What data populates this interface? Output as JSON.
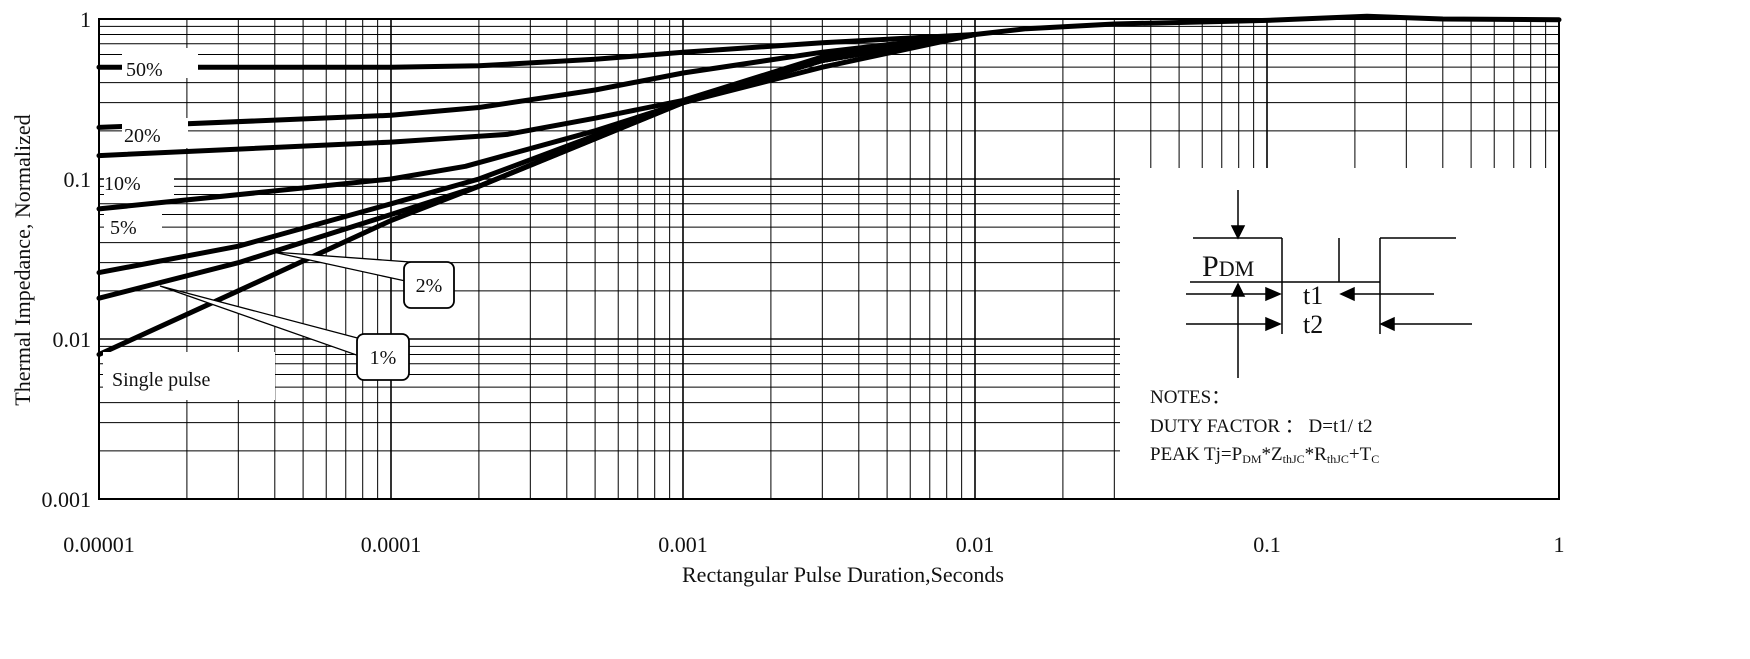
{
  "chart_data": {
    "type": "line",
    "xlabel": "Rectangular Pulse Duration,Seconds",
    "ylabel": "Thermal Impedance, Normalized",
    "x_scale": "log",
    "y_scale": "log",
    "xlim": [
      1e-05,
      1
    ],
    "ylim": [
      0.001,
      1
    ],
    "x_ticks": [
      "0.00001",
      "0.0001",
      "0.001",
      "0.01",
      "0.1",
      "1"
    ],
    "y_ticks": [
      "1",
      "0.1",
      "0.01",
      "0.001"
    ],
    "grid": true,
    "series": [
      {
        "name": "50%",
        "x": [
          1e-05,
          0.0001,
          0.0002,
          0.0005,
          0.001,
          0.003,
          0.01
        ],
        "y": [
          0.5,
          0.5,
          0.51,
          0.56,
          0.62,
          0.71,
          0.8
        ]
      },
      {
        "name": "20%",
        "x": [
          1e-05,
          0.0001,
          0.0002,
          0.0005,
          0.001,
          0.003,
          0.01
        ],
        "y": [
          0.21,
          0.25,
          0.28,
          0.36,
          0.46,
          0.62,
          0.8
        ]
      },
      {
        "name": "10%",
        "x": [
          1e-05,
          0.0001,
          0.00025,
          0.0005,
          0.001,
          0.003,
          0.01
        ],
        "y": [
          0.14,
          0.17,
          0.19,
          0.24,
          0.31,
          0.58,
          0.8
        ]
      },
      {
        "name": "5%",
        "x": [
          1e-05,
          0.0001,
          0.00018,
          0.0005,
          0.001,
          0.003,
          0.01
        ],
        "y": [
          0.065,
          0.1,
          0.12,
          0.2,
          0.3,
          0.55,
          0.8
        ]
      },
      {
        "name": "2%",
        "x": [
          1e-05,
          3e-05,
          0.0001,
          0.0002,
          0.001,
          0.003,
          0.01
        ],
        "y": [
          0.026,
          0.038,
          0.07,
          0.1,
          0.3,
          0.55,
          0.8
        ]
      },
      {
        "name": "1%",
        "x": [
          1e-05,
          3e-05,
          0.0001,
          0.0002,
          0.001,
          0.003,
          0.01
        ],
        "y": [
          0.018,
          0.03,
          0.06,
          0.09,
          0.3,
          0.55,
          0.8
        ]
      },
      {
        "name": "Single pulse",
        "x": [
          1e-05,
          3e-05,
          0.0001,
          0.0002,
          0.001,
          0.003,
          0.01,
          0.015,
          0.03,
          0.1,
          0.22,
          0.4,
          1
        ],
        "y": [
          0.008,
          0.02,
          0.055,
          0.09,
          0.3,
          0.5,
          0.8,
          0.87,
          0.93,
          0.98,
          1.04,
          1.0,
          0.99
        ]
      }
    ],
    "series_labels": [
      "50%",
      "20%",
      "10%",
      "5%",
      "2%",
      "1%",
      "Single pulse"
    ],
    "callouts": {
      "two_percent": "2%",
      "one_percent": "1%"
    }
  },
  "inset": {
    "pdm_main": "P",
    "pdm_sub": "DM",
    "t1": "t1",
    "t2": "t2",
    "notes_title": "NOTES：",
    "duty_factor": "DUTY FACTOR ： D=t1/ t2",
    "peak_prefix": "PEAK Tj=P",
    "peak_sub1": "DM",
    "peak_mid1": "*Z",
    "peak_sub2": "thJC",
    "peak_mid2": "*R",
    "peak_sub3": "thJC",
    "peak_mid3": "+T",
    "peak_sub4": "C"
  }
}
